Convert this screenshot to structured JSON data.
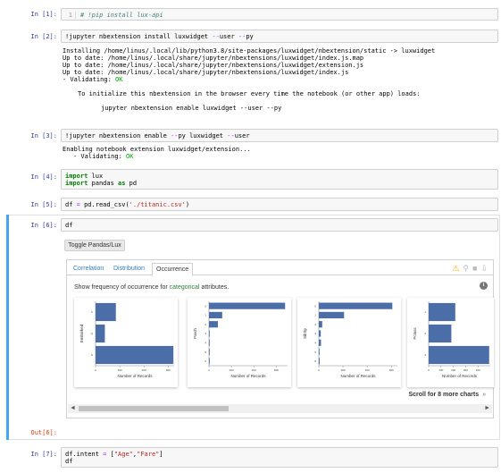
{
  "cells": [
    {
      "prompt": "In [1]:",
      "lineno": "1",
      "code": "# !pip install lux-api"
    },
    {
      "prompt": "In [2]:",
      "code_parts": [
        "!jupyter nbextension install luxwidget ",
        "--",
        "user ",
        "--",
        "py"
      ],
      "output_lines": [
        "Installing /home/linus/.local/lib/python3.8/site-packages/luxwidget/nbextension/static -> luxwidget",
        "Up to date: /home/linus/.local/share/jupyter/nbextensions/luxwidget/index.js.map",
        "Up to date: /home/linus/.local/share/jupyter/nbextensions/luxwidget/extension.js",
        "Up to date: /home/linus/.local/share/jupyter/nbextensions/luxwidget/index.js",
        "- Validating: ",
        "To initialize this nbextension in the browser every time the notebook (or other app) loads:",
        "jupyter nbextension enable luxwidget --user --py"
      ],
      "ok": "OK"
    },
    {
      "prompt": "In [3]:",
      "code_parts": [
        "!jupyter nbextension enable ",
        "--",
        "py luxwidget ",
        "--",
        "user"
      ],
      "output_lines": [
        "Enabling notebook extension luxwidget/extension...",
        "- Validating: "
      ],
      "ok": "OK"
    },
    {
      "prompt": "In [4]:",
      "line1_kw": "import",
      "line1_rest": " lux",
      "line2_kw": "import",
      "line2_mid": " pandas ",
      "line2_as": "as",
      "line2_rest": " pd"
    },
    {
      "prompt": "In [5]:",
      "pre": "df ",
      "eq": "=",
      "mid": " pd.read_csv(",
      "str": "'./titanic.csv'",
      "post": ")"
    },
    {
      "prompt": "In [6]:",
      "code": "df"
    },
    {
      "prompt": "Out[6]:"
    },
    {
      "prompt": "In [7]:",
      "pre": "df.intent ",
      "eq": "=",
      "mid": " [",
      "s1": "\"Age\"",
      "comma": ",",
      "s2": "\"Fare\"",
      "post": "]",
      "line2": "df"
    }
  ],
  "widget": {
    "toggle_label": "Toggle Pandas/Lux",
    "tabs": [
      "Correlation",
      "Distribution",
      "Occurrence"
    ],
    "active_tab": "Occurrence",
    "desc_pre": "Show frequency of occurrence for ",
    "desc_hl": "categorical",
    "desc_post": " attributes.",
    "info": "i",
    "scroll_more": "Scroll for 8 more charts",
    "scroll_chev": "»",
    "arrow_left": "◄",
    "arrow_right": "►",
    "icons": [
      "warning-icon",
      "search-icon",
      "trash-icon",
      "download-icon"
    ]
  },
  "chart_data": [
    {
      "type": "bar",
      "orientation": "horizontal",
      "ylabel": "Embarked",
      "xlabel": "Number of Records",
      "categories": [
        "C",
        "Q",
        "S"
      ],
      "values": [
        168,
        77,
        644
      ],
      "xlim": [
        0,
        650
      ],
      "xticks": [
        "0",
        "200",
        "400",
        "600"
      ]
    },
    {
      "type": "bar",
      "orientation": "horizontal",
      "ylabel": "Parch",
      "xlabel": "Number of Records",
      "categories": [
        "0",
        "1",
        "2",
        "3",
        "4",
        "5",
        "6"
      ],
      "values": [
        678,
        118,
        80,
        5,
        4,
        5,
        1
      ],
      "xlim": [
        0,
        700
      ],
      "xticks": [
        "0",
        "200",
        "400",
        "600"
      ]
    },
    {
      "type": "bar",
      "orientation": "horizontal",
      "ylabel": "SibSp",
      "xlabel": "Number of Records",
      "categories": [
        "0",
        "1",
        "2",
        "3",
        "4",
        "5",
        "8"
      ],
      "values": [
        608,
        209,
        28,
        16,
        18,
        5,
        7
      ],
      "xlim": [
        0,
        650
      ],
      "xticks": [
        "0",
        "200",
        "400",
        "600"
      ]
    },
    {
      "type": "bar",
      "orientation": "horizontal",
      "ylabel": "Pclass",
      "xlabel": "Number of Records",
      "categories": [
        "1",
        "2",
        "3"
      ],
      "values": [
        216,
        184,
        491
      ],
      "xlim": [
        0,
        500
      ],
      "xticks": [
        "0",
        "100",
        "200",
        "300",
        "400"
      ]
    }
  ],
  "colors": {
    "bar": "#4c6ea8",
    "prompt_in": "#303f9f",
    "prompt_out": "#d84315",
    "selected": "#42a5f5"
  }
}
